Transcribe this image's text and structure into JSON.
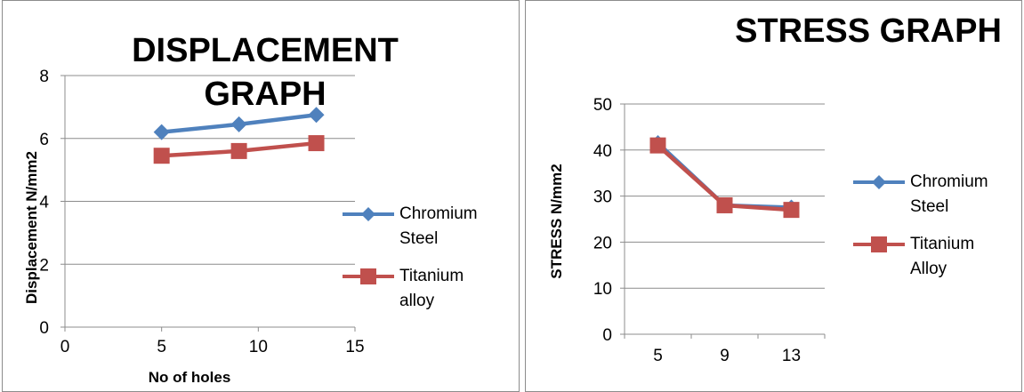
{
  "chart_data": [
    {
      "type": "line",
      "title": "DISPLACEMENT GRAPH",
      "xlabel": "No of holes",
      "ylabel": "Displacement N/mm2",
      "x_axis": "numeric",
      "xlim": [
        0,
        15
      ],
      "ylim": [
        0,
        8
      ],
      "x_ticks": [
        0,
        5,
        10,
        15
      ],
      "y_ticks": [
        0,
        2,
        4,
        6,
        8
      ],
      "grid": "horizontal",
      "legend": "right",
      "x": [
        5,
        9,
        13
      ],
      "series": [
        {
          "name": "Chromium Steel",
          "values": [
            6.2,
            6.45,
            6.75
          ],
          "color": "#4F81BD",
          "marker": "diamond"
        },
        {
          "name": "Titanium alloy",
          "values": [
            5.45,
            5.6,
            5.85
          ],
          "color": "#C0504D",
          "marker": "square"
        }
      ]
    },
    {
      "type": "line",
      "title": "STRESS GRAPH",
      "xlabel": "",
      "ylabel": "STRESS N/mm2",
      "x_axis": "category",
      "categories": [
        "5",
        "9",
        "13"
      ],
      "ylim": [
        0,
        50
      ],
      "y_ticks": [
        0,
        10,
        20,
        30,
        40,
        50
      ],
      "grid": "horizontal",
      "legend": "right",
      "series": [
        {
          "name": "Chromium Steel",
          "values": [
            41.5,
            28,
            27.5
          ],
          "color": "#4F81BD",
          "marker": "diamond"
        },
        {
          "name": "Titanium Alloy",
          "values": [
            41,
            28,
            27
          ],
          "color": "#C0504D",
          "marker": "square"
        }
      ]
    }
  ]
}
